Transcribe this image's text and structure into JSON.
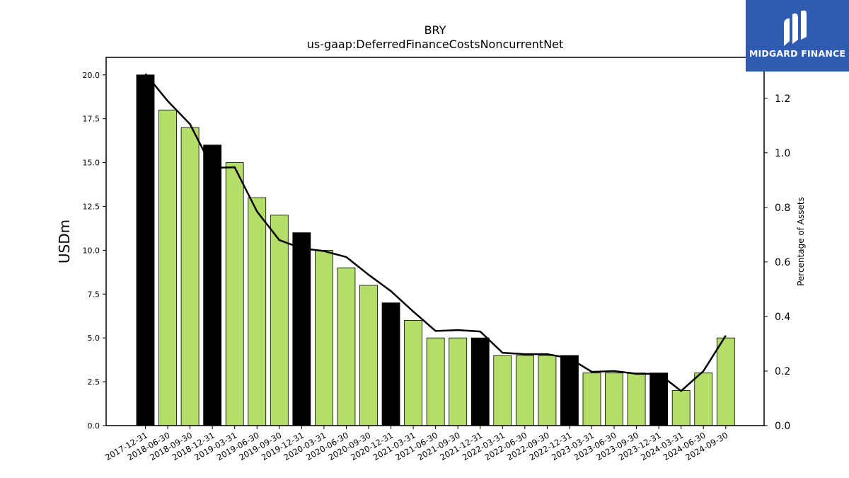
{
  "logo": {
    "text": "MIDGARD FINANCE",
    "icon": "midgard-logo-icon",
    "bg_color": "#2f5cb0"
  },
  "chart_data": {
    "type": "bar",
    "title": "BRY",
    "subtitle": "us-gaap:DeferredFinanceCostsNoncurrentNet",
    "ylabel": "USDm",
    "y2label": "Percentage of Assets",
    "ylim": [
      0,
      21
    ],
    "y2lim": [
      0,
      1.35
    ],
    "yticks": [
      "0.0",
      "2.5",
      "5.0",
      "7.5",
      "10.0",
      "12.5",
      "15.0",
      "17.5",
      "20.0"
    ],
    "y2ticks": [
      "0.0",
      "0.2",
      "0.4",
      "0.6",
      "0.8",
      "1.0",
      "1.2"
    ],
    "categories": [
      "2017-12-31",
      "2018-06-30",
      "2018-09-30",
      "2018-12-31",
      "2019-03-31",
      "2019-06-30",
      "2019-09-30",
      "2019-12-31",
      "2020-03-31",
      "2020-06-30",
      "2020-09-30",
      "2020-12-31",
      "2021-03-31",
      "2021-06-30",
      "2021-09-30",
      "2021-12-31",
      "2022-03-31",
      "2022-06-30",
      "2022-09-30",
      "2022-12-31",
      "2023-03-31",
      "2023-06-30",
      "2023-09-30",
      "2023-12-31",
      "2024-03-31",
      "2024-06-30",
      "2024-09-30"
    ],
    "series": [
      {
        "type": "bar",
        "axis": "left",
        "values": [
          20,
          18,
          17,
          16,
          15,
          13,
          12,
          11,
          10,
          9,
          8,
          7,
          6,
          5,
          5,
          5,
          4,
          4,
          4,
          4,
          3,
          3,
          3,
          3,
          2,
          3,
          5
        ]
      },
      {
        "type": "line",
        "axis": "right",
        "values": [
          1.29,
          1.19,
          1.105,
          0.945,
          0.947,
          0.785,
          0.68,
          0.65,
          0.64,
          0.618,
          0.553,
          0.493,
          0.418,
          0.347,
          0.35,
          0.345,
          0.267,
          0.262,
          0.262,
          0.247,
          0.197,
          0.2,
          0.19,
          0.19,
          0.127,
          0.2,
          0.33
        ]
      }
    ],
    "colors": {
      "annual_bar": "#000000",
      "quarter_bar": "#b3de69",
      "line": "#000000"
    },
    "grid": false
  }
}
